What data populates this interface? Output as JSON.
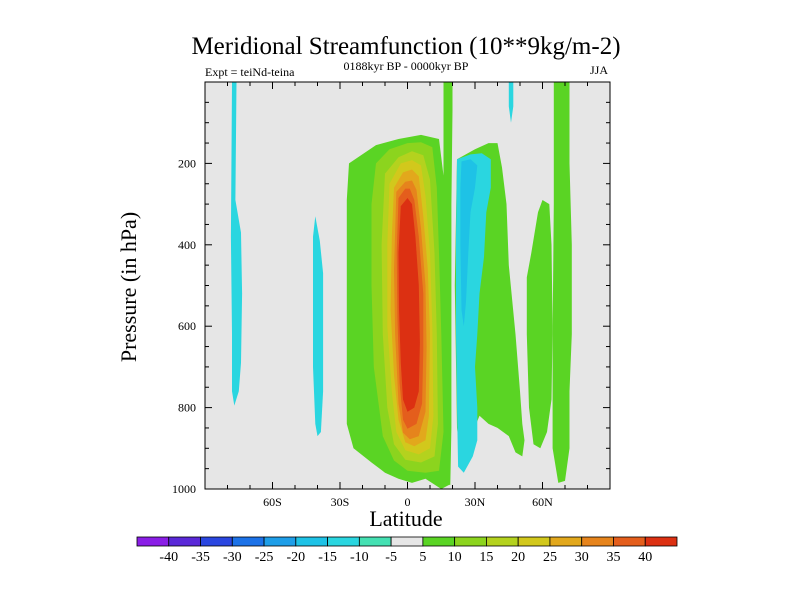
{
  "chart_data": {
    "type": "heatmap",
    "plot_kind": "filled contour (latitude-pressure cross section)",
    "title": "Meridional Streamfunction (10**9kg/m-2)",
    "left_string": "Expt = teiNd-teina",
    "center_string": "0188kyr BP - 0000kyr BP",
    "right_string": "JJA",
    "xlabel": "Latitude",
    "ylabel": "Pressure (in hPa)",
    "xlim": [
      -90,
      90
    ],
    "ylim": [
      1000,
      0
    ],
    "x_ticks": [
      {
        "value": -60,
        "label": "60S"
      },
      {
        "value": -30,
        "label": "30S"
      },
      {
        "value": 0,
        "label": "0"
      },
      {
        "value": 30,
        "label": "30N"
      },
      {
        "value": 60,
        "label": "60N"
      }
    ],
    "y_ticks": [
      {
        "value": 200,
        "label": "200"
      },
      {
        "value": 400,
        "label": "400"
      },
      {
        "value": 600,
        "label": "600"
      },
      {
        "value": 800,
        "label": "800"
      },
      {
        "value": 1000,
        "label": "1000"
      }
    ],
    "missing_color": "#e6e6e6",
    "colorbar": {
      "levels": [
        -40,
        -35,
        -30,
        -25,
        -20,
        -15,
        -10,
        -5,
        5,
        10,
        15,
        20,
        25,
        30,
        35,
        40
      ],
      "labels": [
        "-40",
        "-35",
        "-30",
        "-25",
        "-20",
        "-15",
        "-10",
        "-5",
        "5",
        "10",
        "15",
        "20",
        "25",
        "30",
        "35",
        "40"
      ],
      "colors": [
        "#8a1ee6",
        "#5a28d8",
        "#2a46e0",
        "#1c72e8",
        "#1e9ee8",
        "#1ec2e6",
        "#2ad6e0",
        "#44e0b2",
        "#e6e6e6",
        "#5ad424",
        "#8cd41e",
        "#b4d21e",
        "#d2c81c",
        "#e2a81c",
        "#e6841c",
        "#e45e1c",
        "#dc3012"
      ]
    },
    "regions": [
      {
        "name": "sh-polar-weak-negative",
        "level": "-10 to -5",
        "fill": "#2ad6e0",
        "outline": [
          [
            -78,
            0
          ],
          [
            -76,
            0
          ],
          [
            -76.5,
            290
          ],
          [
            -74,
            370
          ],
          [
            -73.5,
            520
          ],
          [
            -74,
            690
          ],
          [
            -75,
            760
          ],
          [
            -77,
            795
          ],
          [
            -78,
            760
          ],
          [
            -78,
            620
          ],
          [
            -78.5,
            380
          ],
          [
            -78,
            0
          ]
        ]
      },
      {
        "name": "sh-midlat-weak-negative",
        "level": "-10 to -5",
        "fill": "#2ad6e0",
        "outline": [
          [
            -41,
            330
          ],
          [
            -39,
            390
          ],
          [
            -37.5,
            470
          ],
          [
            -37.5,
            600
          ],
          [
            -37.5,
            760
          ],
          [
            -38.5,
            860
          ],
          [
            -40,
            870
          ],
          [
            -41,
            840
          ],
          [
            -42,
            700
          ],
          [
            -42,
            480
          ],
          [
            -42,
            380
          ],
          [
            -41,
            330
          ]
        ]
      },
      {
        "name": "nh-weak-negative-column",
        "level": "-10 to -5",
        "fill": "#2ad6e0",
        "outline": [
          [
            45,
            0
          ],
          [
            47,
            0
          ],
          [
            47,
            60
          ],
          [
            46,
            100
          ],
          [
            45,
            60
          ],
          [
            45,
            0
          ]
        ]
      },
      {
        "name": "tropical-positive-cell",
        "level": "5 to 10",
        "fill": "#5ad424",
        "outline": [
          [
            -26,
            200
          ],
          [
            -14,
            155
          ],
          [
            -4,
            140
          ],
          [
            6,
            130
          ],
          [
            14,
            140
          ],
          [
            16,
            230
          ],
          [
            17,
            400
          ],
          [
            18,
            620
          ],
          [
            19,
            850
          ],
          [
            18.5,
            990
          ],
          [
            15,
            1000
          ],
          [
            8,
            975
          ],
          [
            2,
            985
          ],
          [
            -4,
            975
          ],
          [
            -10,
            960
          ],
          [
            -16,
            935
          ],
          [
            -24,
            900
          ],
          [
            -27,
            840
          ],
          [
            -27,
            640
          ],
          [
            -27,
            420
          ],
          [
            -27,
            290
          ],
          [
            -26,
            200
          ]
        ],
        "holes": [
          [
            [
              -15,
              300
            ],
            [
              -10,
              305
            ],
            [
              -9,
              350
            ],
            [
              -12,
              395
            ],
            [
              -15,
              390
            ],
            [
              -16,
              350
            ],
            [
              -15,
              300
            ]
          ]
        ]
      },
      {
        "name": "positive-column-15n",
        "level": "5 to 10",
        "fill": "#5ad424",
        "outline": [
          [
            16,
            0
          ],
          [
            20,
            0
          ],
          [
            20,
            70
          ],
          [
            19.5,
            300
          ],
          [
            19.5,
            620
          ],
          [
            19.5,
            850
          ],
          [
            19,
            990
          ],
          [
            16,
            990
          ],
          [
            16.5,
            700
          ],
          [
            16,
            300
          ],
          [
            16,
            0
          ]
        ]
      },
      {
        "name": "nh-subtropical-positive",
        "level": "5 to 10",
        "fill": "#5ad424",
        "outline": [
          [
            22,
            190
          ],
          [
            30,
            165
          ],
          [
            36,
            150
          ],
          [
            40,
            150
          ],
          [
            42,
            210
          ],
          [
            44,
            300
          ],
          [
            45,
            450
          ],
          [
            48,
            620
          ],
          [
            50,
            760
          ],
          [
            51,
            840
          ],
          [
            52,
            880
          ],
          [
            51,
            920
          ],
          [
            48,
            910
          ],
          [
            45,
            870
          ],
          [
            40,
            850
          ],
          [
            36,
            840
          ],
          [
            32,
            820
          ],
          [
            29,
            860
          ],
          [
            26,
            920
          ],
          [
            24,
            940
          ],
          [
            22,
            850
          ],
          [
            21,
            500
          ],
          [
            22,
            190
          ]
        ]
      },
      {
        "name": "nh-negative-cell",
        "level": "-10 to -5",
        "fill": "#2ad6e0",
        "outline": [
          [
            22,
            190
          ],
          [
            28,
            178
          ],
          [
            33,
            175
          ],
          [
            37,
            190
          ],
          [
            37,
            260
          ],
          [
            35,
            320
          ],
          [
            34,
            430
          ],
          [
            32,
            520
          ],
          [
            31,
            620
          ],
          [
            30,
            700
          ],
          [
            31,
            800
          ],
          [
            31,
            880
          ],
          [
            29,
            920
          ],
          [
            25,
            960
          ],
          [
            22.5,
            945
          ],
          [
            22,
            800
          ],
          [
            21.5,
            600
          ],
          [
            21.5,
            400
          ],
          [
            22,
            190
          ]
        ]
      },
      {
        "name": "nh-negative-core",
        "level": "-15 to -10",
        "fill": "#1ec2e6",
        "outline": [
          [
            24,
            195
          ],
          [
            28,
            190
          ],
          [
            31,
            205
          ],
          [
            30,
            260
          ],
          [
            28,
            320
          ],
          [
            27,
            420
          ],
          [
            26,
            540
          ],
          [
            25,
            600
          ],
          [
            24,
            560
          ],
          [
            23.5,
            400
          ],
          [
            23.5,
            260
          ],
          [
            24,
            195
          ]
        ]
      },
      {
        "name": "nh-positive-column-60n",
        "level": "5 to 10",
        "fill": "#5ad424",
        "outline": [
          [
            65,
            0
          ],
          [
            72,
            0
          ],
          [
            72,
            200
          ],
          [
            73,
            400
          ],
          [
            73,
            620
          ],
          [
            72,
            760
          ],
          [
            72,
            900
          ],
          [
            70,
            980
          ],
          [
            67,
            985
          ],
          [
            64.5,
            900
          ],
          [
            64.5,
            620
          ],
          [
            65,
            300
          ],
          [
            65,
            0
          ]
        ]
      },
      {
        "name": "nh-positive-lobe-55n",
        "level": "5 to 10",
        "fill": "#5ad424",
        "outline": [
          [
            60,
            290
          ],
          [
            63,
            300
          ],
          [
            64,
            400
          ],
          [
            64.5,
            600
          ],
          [
            64,
            780
          ],
          [
            62,
            860
          ],
          [
            59,
            900
          ],
          [
            56,
            890
          ],
          [
            54,
            800
          ],
          [
            53,
            620
          ],
          [
            53,
            480
          ],
          [
            55,
            420
          ],
          [
            58,
            320
          ],
          [
            60,
            290
          ]
        ]
      },
      {
        "name": "trop-level-10",
        "level": "10 to 15",
        "fill": "#8cd41e",
        "outline": [
          [
            -14,
            200
          ],
          [
            -8,
            165
          ],
          [
            0,
            150
          ],
          [
            6,
            148
          ],
          [
            11,
            160
          ],
          [
            13,
            260
          ],
          [
            14,
            420
          ],
          [
            15,
            620
          ],
          [
            16,
            860
          ],
          [
            14,
            955
          ],
          [
            8,
            960
          ],
          [
            0,
            955
          ],
          [
            -6,
            930
          ],
          [
            -11,
            870
          ],
          [
            -15,
            700
          ],
          [
            -16,
            500
          ],
          [
            -16,
            300
          ],
          [
            -14,
            200
          ]
        ]
      },
      {
        "name": "trop-level-15",
        "level": "15 to 20",
        "fill": "#b4d21e",
        "outline": [
          [
            -10,
            225
          ],
          [
            -4,
            185
          ],
          [
            2,
            170
          ],
          [
            7,
            180
          ],
          [
            10,
            240
          ],
          [
            12,
            420
          ],
          [
            13,
            620
          ],
          [
            13.5,
            840
          ],
          [
            12,
            920
          ],
          [
            6,
            935
          ],
          [
            -1,
            928
          ],
          [
            -6,
            890
          ],
          [
            -9,
            800
          ],
          [
            -11,
            620
          ],
          [
            -11.5,
            400
          ],
          [
            -10,
            225
          ]
        ]
      },
      {
        "name": "trop-level-20",
        "level": "20 to 25",
        "fill": "#d2c81c",
        "outline": [
          [
            -8,
            250
          ],
          [
            -3,
            200
          ],
          [
            2,
            192
          ],
          [
            6,
            205
          ],
          [
            8,
            280
          ],
          [
            10,
            420
          ],
          [
            11,
            600
          ],
          [
            11.5,
            820
          ],
          [
            10,
            900
          ],
          [
            5,
            915
          ],
          [
            -1,
            905
          ],
          [
            -5,
            860
          ],
          [
            -7,
            760
          ],
          [
            -9,
            600
          ],
          [
            -9,
            400
          ],
          [
            -8,
            250
          ]
        ]
      },
      {
        "name": "trop-level-25",
        "level": "25 to 30",
        "fill": "#e2a81c",
        "outline": [
          [
            -6,
            260
          ],
          [
            -2,
            222
          ],
          [
            2,
            215
          ],
          [
            5,
            232
          ],
          [
            7,
            330
          ],
          [
            9,
            460
          ],
          [
            10,
            620
          ],
          [
            9.5,
            820
          ],
          [
            8,
            880
          ],
          [
            3,
            895
          ],
          [
            -1,
            885
          ],
          [
            -4,
            830
          ],
          [
            -6,
            720
          ],
          [
            -7.5,
            560
          ],
          [
            -7,
            380
          ],
          [
            -6,
            260
          ]
        ]
      },
      {
        "name": "trop-level-30",
        "level": "30 to 35",
        "fill": "#e6841c",
        "outline": [
          [
            -5,
            270
          ],
          [
            -1,
            245
          ],
          [
            2,
            242
          ],
          [
            4,
            265
          ],
          [
            6,
            360
          ],
          [
            8,
            500
          ],
          [
            8.5,
            650
          ],
          [
            8,
            810
          ],
          [
            5,
            870
          ],
          [
            1,
            878
          ],
          [
            -2,
            862
          ],
          [
            -4,
            790
          ],
          [
            -5.5,
            620
          ],
          [
            -6,
            460
          ],
          [
            -5,
            270
          ]
        ]
      },
      {
        "name": "trop-level-35",
        "level": "35 to 40",
        "fill": "#e45e1c",
        "outline": [
          [
            -4,
            285
          ],
          [
            -1,
            262
          ],
          [
            1,
            262
          ],
          [
            3,
            290
          ],
          [
            5,
            380
          ],
          [
            7,
            520
          ],
          [
            7,
            660
          ],
          [
            6.5,
            790
          ],
          [
            4,
            840
          ],
          [
            0,
            852
          ],
          [
            -2,
            830
          ],
          [
            -3.5,
            740
          ],
          [
            -4.5,
            580
          ],
          [
            -4.8,
            420
          ],
          [
            -4,
            285
          ]
        ]
      },
      {
        "name": "trop-level-40",
        "level": "above 40",
        "fill": "#dc3012",
        "outline": [
          [
            -3,
            305
          ],
          [
            0,
            285
          ],
          [
            2,
            300
          ],
          [
            3.5,
            380
          ],
          [
            5,
            500
          ],
          [
            5.5,
            640
          ],
          [
            5,
            760
          ],
          [
            3,
            800
          ],
          [
            0,
            810
          ],
          [
            -2,
            780
          ],
          [
            -3,
            690
          ],
          [
            -3.8,
            560
          ],
          [
            -4,
            420
          ],
          [
            -3,
            305
          ]
        ]
      }
    ]
  }
}
